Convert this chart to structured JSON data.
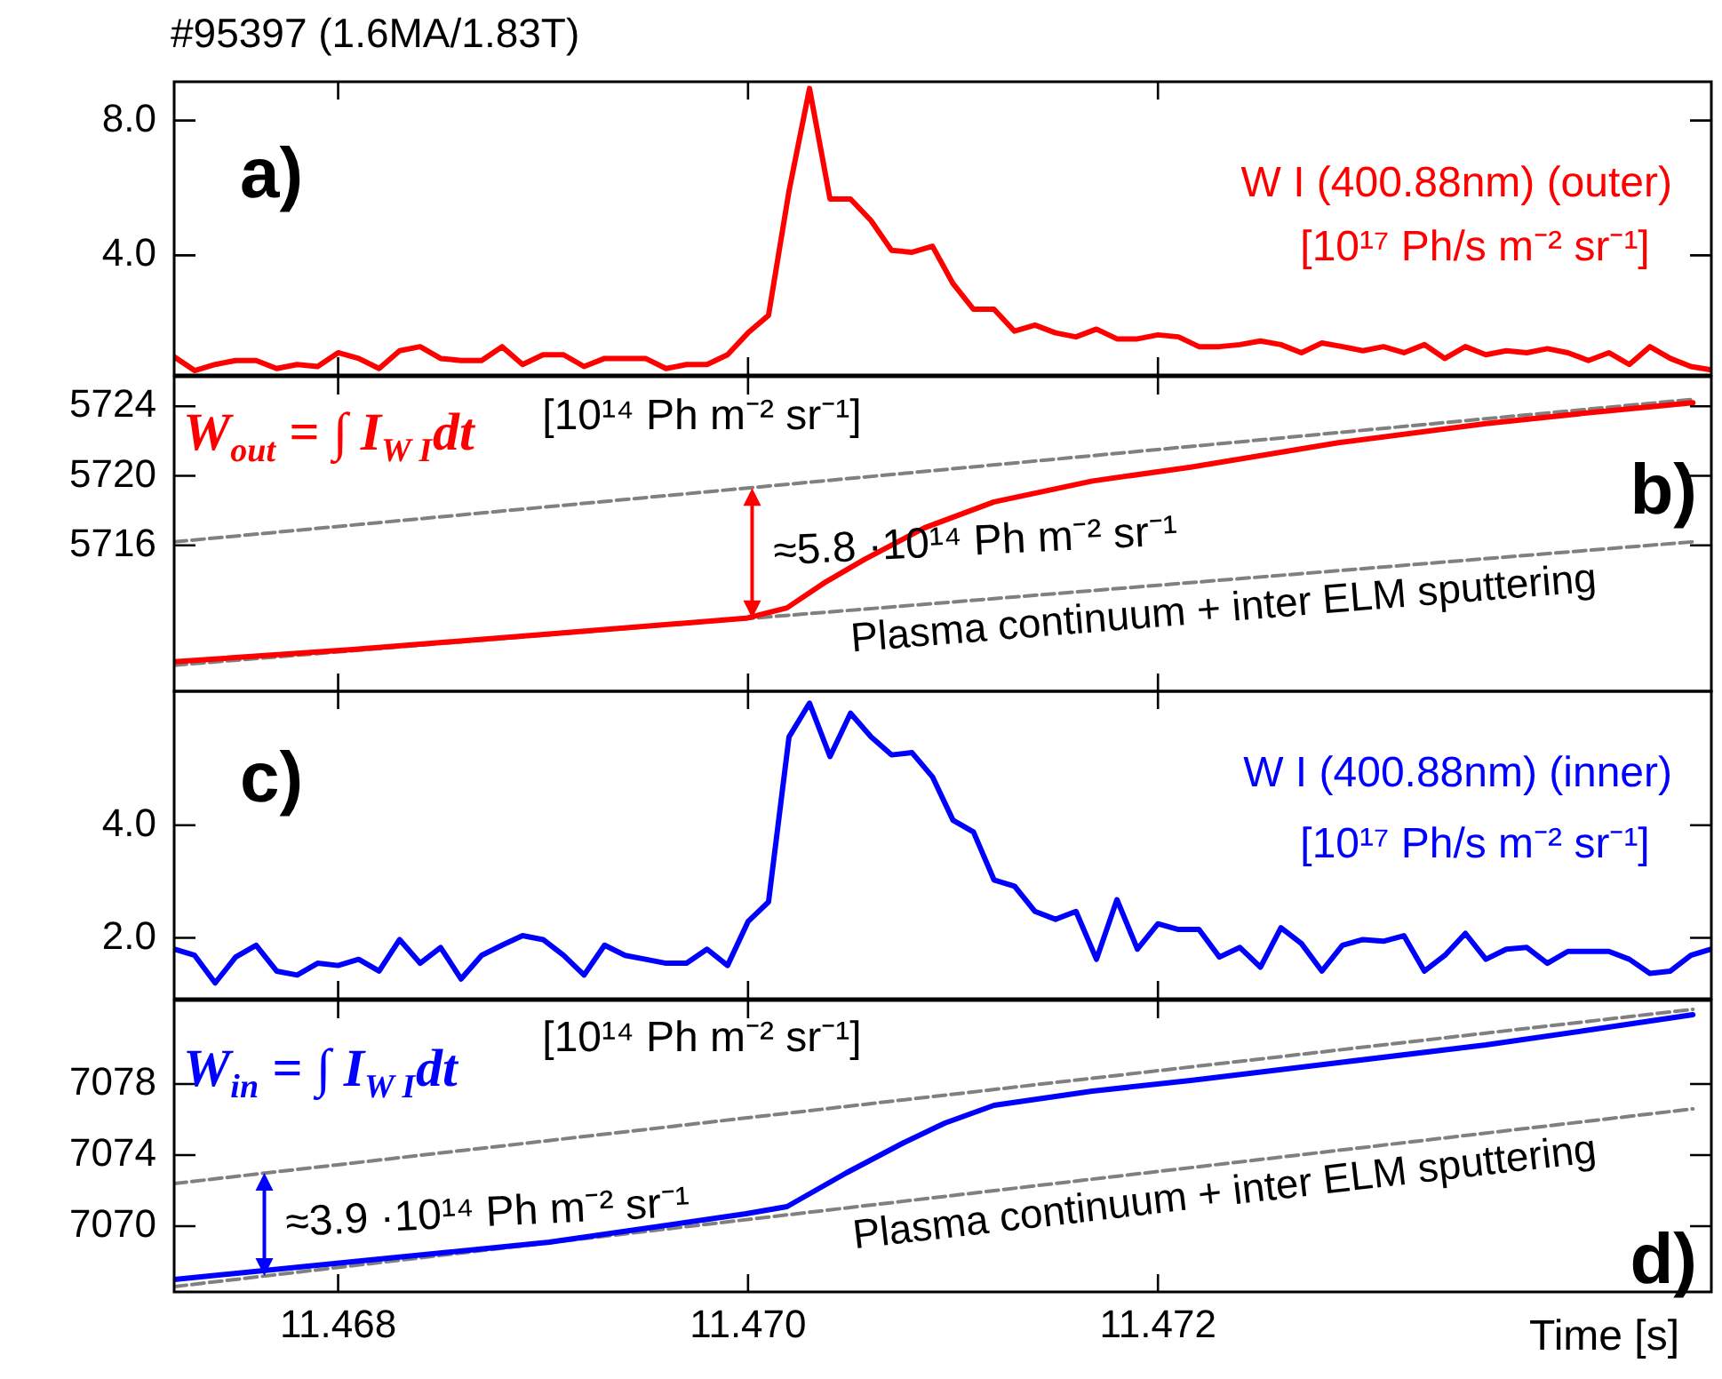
{
  "chart_data": [
    {
      "type": "line",
      "title": "#95397 (1.6MA/1.83T)",
      "marker": "none",
      "tick_labels": "y",
      "x": [
        11.4672,
        11.4673,
        11.4674,
        11.4675,
        11.4676,
        11.4677,
        11.4678,
        11.4679,
        11.468,
        11.4681,
        11.4682,
        11.4683,
        11.4684,
        11.4685,
        11.4686,
        11.4687,
        11.4688,
        11.4689,
        11.469,
        11.4691,
        11.4692,
        11.4693,
        11.4694,
        11.4695,
        11.4696,
        11.4697,
        11.4698,
        11.4699,
        11.47,
        11.4701,
        11.4702,
        11.4703,
        11.4704,
        11.4705,
        11.4706,
        11.4707,
        11.4708,
        11.4709,
        11.471,
        11.4711,
        11.4712,
        11.4713,
        11.4714,
        11.4715,
        11.4716,
        11.4717,
        11.4718,
        11.4719,
        11.472,
        11.4721,
        11.4722,
        11.4723,
        11.4724,
        11.4725,
        11.4726,
        11.4727,
        11.4728,
        11.4729,
        11.473,
        11.4731,
        11.4732,
        11.4733,
        11.4734,
        11.4735,
        11.4736,
        11.4737,
        11.4738,
        11.4739,
        11.474,
        11.4741,
        11.4742,
        11.4743,
        11.4744,
        11.4745,
        11.4746,
        11.4747
      ],
      "series": [
        {
          "name": "W I (400.88nm) (outer)",
          "color": "#ff0000",
          "values": [
            0.99,
            0.58,
            0.76,
            0.88,
            0.88,
            0.64,
            0.76,
            0.7,
            1.11,
            0.94,
            0.64,
            1.17,
            1.29,
            0.94,
            0.88,
            0.88,
            1.29,
            0.76,
            1.05,
            1.05,
            0.7,
            0.94,
            0.94,
            0.94,
            0.64,
            0.76,
            0.76,
            1.05,
            1.7,
            2.22,
            5.91,
            8.95,
            5.67,
            5.67,
            5.03,
            4.15,
            4.09,
            4.27,
            3.16,
            2.4,
            2.4,
            1.75,
            1.93,
            1.7,
            1.58,
            1.81,
            1.52,
            1.52,
            1.64,
            1.58,
            1.29,
            1.29,
            1.35,
            1.46,
            1.35,
            1.11,
            1.4,
            1.29,
            1.17,
            1.29,
            1.11,
            1.35,
            0.94,
            1.29,
            1.05,
            1.17,
            1.11,
            1.23,
            1.11,
            0.88,
            1.11,
            0.76,
            1.29,
            0.94,
            0.7,
            0.6
          ]
        }
      ],
      "annotations": [
        "a)",
        "[10¹⁷ Ph/s m⁻² sr⁻¹]"
      ],
      "xlim": [
        11.4672,
        11.4747
      ],
      "xticks": [
        11.468,
        11.47,
        11.472
      ],
      "ylim": [
        0.45,
        9.15
      ],
      "yticks": [
        {
          "value": 4,
          "label": "4.0"
        },
        {
          "value": 8,
          "label": "8.0"
        }
      ]
    },
    {
      "type": "line",
      "marker": "none",
      "tick_labels": "y",
      "series": [
        {
          "name": "W$_{out}$ = ∫ I$_{W I}$dt",
          "color": "#ff0000",
          "x": [
            11.4672,
            11.46807,
            11.46903,
            11.46999,
            11.47019,
            11.47038,
            11.47057,
            11.47086,
            11.4712,
            11.47168,
            11.47216,
            11.47288,
            11.4736,
            11.47408,
            11.47461
          ],
          "values": [
            5709.3,
            5710.0,
            5710.9,
            5711.8,
            5712.4,
            5713.9,
            5715.2,
            5717.0,
            5718.5,
            5719.7,
            5720.5,
            5721.9,
            5723.0,
            5723.6,
            5724.2
          ]
        },
        {
          "color": "#808080",
          "line_style": "dashed",
          "x": [
            11.4672,
            11.47461
          ],
          "values": [
            5716.2,
            5724.4
          ]
        },
        {
          "color": "#808080",
          "line_style": "dashed",
          "x": [
            11.4672,
            11.47461
          ],
          "values": [
            5709.1,
            5716.2
          ]
        }
      ],
      "annotations": [
        "b)",
        "[10¹⁴ Ph m⁻² sr⁻¹]",
        {
          "text": "≈5.8 ·10¹⁴ Ph m⁻² sr⁻¹",
          "x": 11.47002,
          "y": 5719.3
        },
        {
          "text": "Plasma continuum + inter ELM sputtering",
          "x": 11.47231,
          "y": 5714.0
        }
      ],
      "xlim": [
        11.4672,
        11.4747
      ],
      "xticks": [
        11.468,
        11.47,
        11.472
      ],
      "ylim": [
        5707.6,
        5725.7
      ],
      "yticks": [
        5716,
        5720,
        5724
      ]
    },
    {
      "type": "line",
      "marker": "none",
      "tick_labels": "y",
      "x": [
        11.4672,
        11.4673,
        11.4674,
        11.4675,
        11.4676,
        11.4677,
        11.4678,
        11.4679,
        11.468,
        11.4681,
        11.4682,
        11.4683,
        11.4684,
        11.4685,
        11.4686,
        11.4687,
        11.4688,
        11.4689,
        11.469,
        11.4691,
        11.4692,
        11.4693,
        11.4694,
        11.4695,
        11.4696,
        11.4697,
        11.4698,
        11.4699,
        11.47,
        11.4701,
        11.4702,
        11.4703,
        11.4704,
        11.4705,
        11.4706,
        11.4707,
        11.4708,
        11.4709,
        11.471,
        11.4711,
        11.4712,
        11.4713,
        11.4714,
        11.4715,
        11.4716,
        11.4717,
        11.4718,
        11.4719,
        11.472,
        11.4721,
        11.4722,
        11.4723,
        11.4724,
        11.4725,
        11.4726,
        11.4727,
        11.4728,
        11.4729,
        11.473,
        11.4731,
        11.4732,
        11.4733,
        11.4734,
        11.4735,
        11.4736,
        11.4737,
        11.4738,
        11.4739,
        11.474,
        11.4741,
        11.4742,
        11.4743,
        11.4744,
        11.4745,
        11.4746,
        11.4747
      ],
      "series": [
        {
          "name": "W I (400.88nm) (inner)",
          "color": "#0000ff",
          "values": [
            1.8,
            1.69,
            1.2,
            1.66,
            1.87,
            1.41,
            1.34,
            1.55,
            1.51,
            1.62,
            1.41,
            1.97,
            1.55,
            1.83,
            1.27,
            1.69,
            1.87,
            2.04,
            1.97,
            1.69,
            1.34,
            1.87,
            1.69,
            1.62,
            1.55,
            1.55,
            1.8,
            1.51,
            2.29,
            2.64,
            5.57,
            6.17,
            5.22,
            5.99,
            5.57,
            5.25,
            5.29,
            4.86,
            4.09,
            3.88,
            3.03,
            2.92,
            2.47,
            2.33,
            2.47,
            1.62,
            2.68,
            1.8,
            2.25,
            2.15,
            2.15,
            1.66,
            1.83,
            1.48,
            2.18,
            1.9,
            1.41,
            1.87,
            1.97,
            1.94,
            2.04,
            1.41,
            1.69,
            2.08,
            1.62,
            1.8,
            1.83,
            1.55,
            1.76,
            1.76,
            1.76,
            1.62,
            1.37,
            1.41,
            1.69,
            1.8
          ]
        }
      ],
      "annotations": [
        "c)",
        "[10¹⁷ Ph/s m⁻² sr⁻¹]"
      ],
      "xlim": [
        11.4672,
        11.4747
      ],
      "xticks": [
        11.468,
        11.47,
        11.472
      ],
      "ylim": [
        0.92,
        6.38
      ],
      "yticks": [
        {
          "value": 2,
          "label": "2.0"
        },
        {
          "value": 4,
          "label": "4.0"
        }
      ]
    },
    {
      "type": "line",
      "marker": "none",
      "xlabel": "Time [s]",
      "series": [
        {
          "name": "W$_{in}$ = ∫ I$_{W I}$dt",
          "color": "#0000ff",
          "x": [
            11.4672,
            11.46807,
            11.46903,
            11.46999,
            11.47019,
            11.47048,
            11.47076,
            11.47096,
            11.4712,
            11.47168,
            11.47216,
            11.47288,
            11.4736,
            11.47408,
            11.47461
          ],
          "values": [
            7067.0,
            7068.0,
            7069.1,
            7070.7,
            7071.1,
            7073.0,
            7074.7,
            7075.8,
            7076.8,
            7077.6,
            7078.2,
            7079.2,
            7080.2,
            7081.0,
            7081.9
          ]
        },
        {
          "color": "#808080",
          "line_style": "dashed",
          "x": [
            11.4672,
            11.47461
          ],
          "values": [
            7072.4,
            7082.2
          ]
        },
        {
          "color": "#808080",
          "line_style": "dashed",
          "x": [
            11.4672,
            11.47461
          ],
          "values": [
            7066.6,
            7076.6
          ]
        }
      ],
      "annotations": [
        "d)",
        "[10¹⁴ Ph m⁻² sr⁻¹]",
        {
          "text": "≈3.9 ·10¹⁴ Ph m⁻² sr⁻¹",
          "x": 11.46764,
          "y": 7073.0
        },
        {
          "text": "Plasma continuum + inter ELM sputtering",
          "x": 11.47231,
          "y": 7073.5
        }
      ],
      "xlim": [
        11.4672,
        11.4747
      ],
      "xticks": [
        11.468,
        {
          "value": 11.47,
          "label": "11.470"
        },
        11.472
      ],
      "ylim": [
        7066.3,
        7082.7
      ],
      "yticks": [
        7070,
        7074,
        7078
      ]
    }
  ]
}
